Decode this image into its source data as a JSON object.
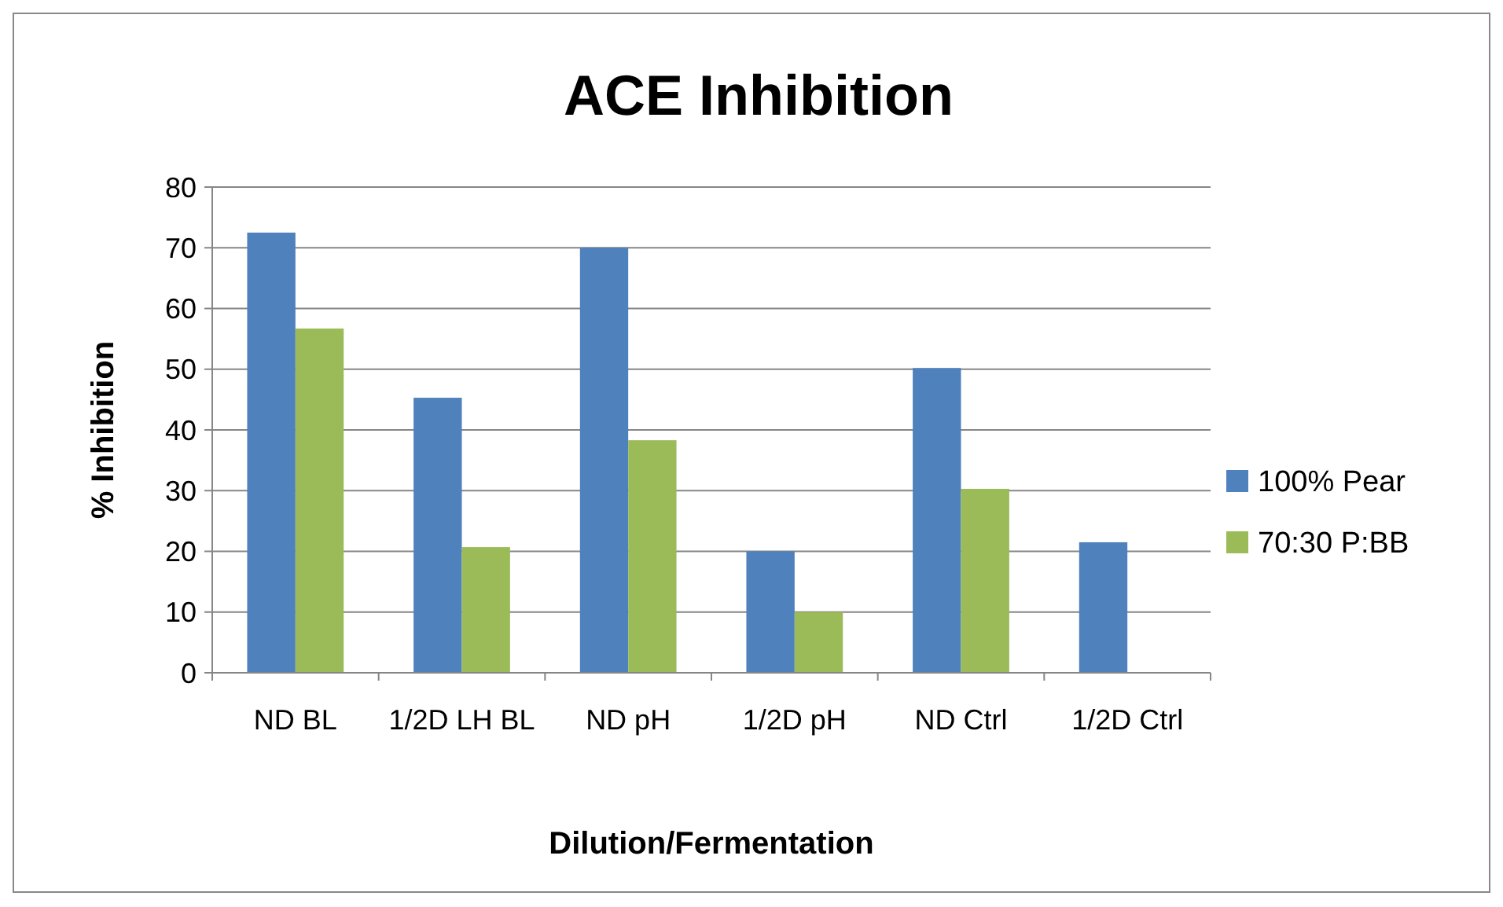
{
  "chart_data": {
    "type": "bar",
    "title": "ACE Inhibition",
    "xlabel": "Dilution/Fermentation",
    "ylabel": "% Inhibition",
    "categories": [
      "ND BL",
      "1/2D LH BL",
      "ND pH",
      "1/2D pH",
      "ND Ctrl",
      "1/2D Ctrl"
    ],
    "series": [
      {
        "name": "100% Pear",
        "color": "#4f81bd",
        "values": [
          72.5,
          45.3,
          70,
          20,
          50.2,
          21.5
        ]
      },
      {
        "name": "70:30 P:BB",
        "color": "#9bbb59",
        "values": [
          56.7,
          20.7,
          38.3,
          10,
          30.3,
          null
        ]
      }
    ],
    "ylim": [
      0,
      80
    ],
    "yticks": [
      0,
      10,
      20,
      30,
      40,
      50,
      60,
      70,
      80
    ],
    "grid": "y",
    "legend": "right"
  }
}
